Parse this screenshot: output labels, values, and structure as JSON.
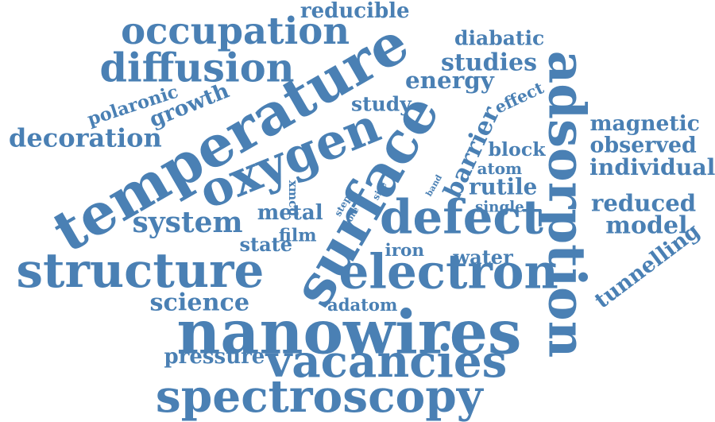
{
  "cloud": {
    "color": "#4a80b4",
    "words": [
      {
        "id": "reducible",
        "text": "reducible"
      },
      {
        "id": "occupation",
        "text": "occupation"
      },
      {
        "id": "diabatic",
        "text": "diabatic"
      },
      {
        "id": "diffusion",
        "text": "diffusion"
      },
      {
        "id": "studies",
        "text": "studies"
      },
      {
        "id": "energy",
        "text": "energy"
      },
      {
        "id": "temperature",
        "text": "temperature"
      },
      {
        "id": "surface",
        "text": "surface"
      },
      {
        "id": "adsorption",
        "text": "adsorption"
      },
      {
        "id": "polaronic",
        "text": "polaronic"
      },
      {
        "id": "growth",
        "text": "growth"
      },
      {
        "id": "study",
        "text": "study"
      },
      {
        "id": "effect",
        "text": "effect"
      },
      {
        "id": "decoration",
        "text": "decoration"
      },
      {
        "id": "oxygen",
        "text": "oxygen"
      },
      {
        "id": "barrier",
        "text": "barrier"
      },
      {
        "id": "magnetic",
        "text": "magnetic"
      },
      {
        "id": "observed",
        "text": "observed"
      },
      {
        "id": "block",
        "text": "block"
      },
      {
        "id": "atom",
        "text": "atom"
      },
      {
        "id": "individual",
        "text": "individual"
      },
      {
        "id": "xmcd",
        "text": "xmcd"
      },
      {
        "id": "step",
        "text": "step"
      },
      {
        "id": "site",
        "text": "site"
      },
      {
        "id": "band",
        "text": "band"
      },
      {
        "id": "rutile",
        "text": "rutile"
      },
      {
        "id": "reduced",
        "text": "reduced"
      },
      {
        "id": "metal",
        "text": "metal"
      },
      {
        "id": "core",
        "text": "core"
      },
      {
        "id": "single",
        "text": "single"
      },
      {
        "id": "defect",
        "text": "defect"
      },
      {
        "id": "system",
        "text": "system"
      },
      {
        "id": "film",
        "text": "film"
      },
      {
        "id": "model",
        "text": "model"
      },
      {
        "id": "state",
        "text": "state"
      },
      {
        "id": "iron",
        "text": "iron"
      },
      {
        "id": "tunnelling",
        "text": "tunnelling"
      },
      {
        "id": "structure",
        "text": "structure"
      },
      {
        "id": "water",
        "text": "water"
      },
      {
        "id": "electron",
        "text": "electron"
      },
      {
        "id": "science",
        "text": "science"
      },
      {
        "id": "adatom",
        "text": "adatom"
      },
      {
        "id": "nanowires",
        "text": "nanowires"
      },
      {
        "id": "pressure",
        "text": "pressure"
      },
      {
        "id": "vacancies",
        "text": "vacancies"
      },
      {
        "id": "spectroscopy",
        "text": "spectroscopy"
      }
    ]
  }
}
